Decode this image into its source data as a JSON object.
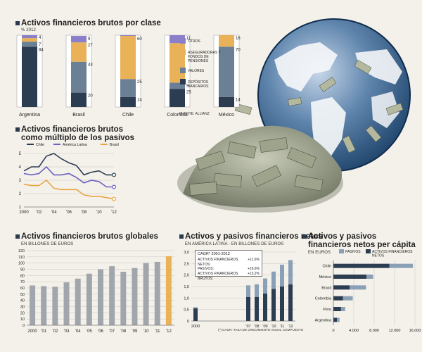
{
  "colors": {
    "dark": "#2c3d52",
    "steel": "#6b7f95",
    "orange": "#e9b158",
    "violet": "#8c7fc9",
    "grid": "#c9c6bf",
    "grey_bar": "#a1a6ad",
    "light_blue": "#8aa0b6"
  },
  "globe_icon": "money-globe-icon",
  "chart_data": [
    {
      "id": "by_class",
      "type": "bar",
      "stacked": true,
      "title": "Activos financieros brutos por clase",
      "subtitle": "% 2012",
      "source": "FUENTE: ALLIANZ",
      "categories": [
        "Argentina",
        "Brasil",
        "Chile",
        "Colombia",
        "México",
        "Perú"
      ],
      "series": [
        {
          "name": "DEPÓSITOS BANCARIOS",
          "color": "#2c3d52",
          "values": [
            84,
            20,
            14,
            25,
            14,
            53
          ]
        },
        {
          "name": "VALORES",
          "color": "#6b7f95",
          "values": [
            7,
            43,
            25,
            9,
            70,
            7
          ]
        },
        {
          "name": "ASEGURADORAS Y FONDOS DE PENSIONES",
          "color": "#e9b158",
          "values": [
            5,
            27,
            60,
            55,
            16,
            35
          ]
        },
        {
          "name": "OTROS",
          "color": "#8c7fc9",
          "values": [
            4,
            9,
            1,
            11,
            0,
            5
          ]
        }
      ],
      "value_labels": [
        [
          "84",
          "7",
          "",
          "4"
        ],
        [
          "20",
          "43",
          "27",
          "9"
        ],
        [
          "14",
          "25",
          "60",
          ""
        ],
        [
          "25",
          "9",
          "",
          "11"
        ],
        [
          "14",
          "70",
          "16",
          ""
        ],
        [
          "53",
          "7",
          "35",
          ""
        ]
      ],
      "legend": [
        {
          "name": "OTROS",
          "color": "#8c7fc9"
        },
        {
          "name": "ASEGURADORAS Y FONDOS DE PENSIONES",
          "color": "#e9b158"
        },
        {
          "name": "VALORES",
          "color": "#6b7f95"
        },
        {
          "name": "DEPÓSITOS BANCARIOS",
          "color": "#2c3d52"
        }
      ],
      "ylim": [
        0,
        100
      ]
    },
    {
      "id": "multiple",
      "type": "line",
      "title": "Activos financieros brutos como múltiplo de los pasivos",
      "x": [
        2000,
        2001,
        2002,
        2003,
        2004,
        2005,
        2006,
        2007,
        2008,
        2009,
        2010,
        2011,
        2012
      ],
      "xtick_labels": [
        "2000",
        "'02",
        "'04",
        "'06",
        "'08",
        "'10",
        "'12"
      ],
      "xtick_values": [
        2000,
        2002,
        2004,
        2006,
        2008,
        2010,
        2012
      ],
      "ylim": [
        1,
        5
      ],
      "yticks": [
        1,
        2,
        3,
        4,
        5
      ],
      "series": [
        {
          "name": "Chile",
          "color": "#2c3d52",
          "values": [
            3.7,
            4.0,
            4.0,
            4.8,
            5.0,
            4.6,
            4.3,
            4.1,
            3.4,
            3.6,
            3.7,
            3.4,
            3.4
          ]
        },
        {
          "name": "América Latina",
          "color": "#6a5fc2",
          "values": [
            3.5,
            3.4,
            3.5,
            4.0,
            3.4,
            3.4,
            3.5,
            3.2,
            2.8,
            3.0,
            2.9,
            2.5,
            2.5
          ]
        },
        {
          "name": "Brasil",
          "color": "#e9a542",
          "values": [
            2.7,
            2.6,
            2.6,
            3.0,
            2.4,
            2.3,
            2.3,
            2.3,
            1.9,
            1.8,
            1.8,
            1.7,
            1.6
          ]
        }
      ]
    },
    {
      "id": "global",
      "type": "bar",
      "title": "Activos financieros brutos globales",
      "subtitle": "EN BILLONES DE EUROS",
      "categories": [
        "2000",
        "'01",
        "'02",
        "'03",
        "'04",
        "'05",
        "'06",
        "'07",
        "'08",
        "'09",
        "'10",
        "'11",
        "'12"
      ],
      "values": [
        64,
        63,
        62,
        69,
        75,
        83,
        90,
        95,
        86,
        92,
        100,
        102,
        111
      ],
      "highlight_index": 12,
      "ylim": [
        0,
        120
      ],
      "yticks": [
        0,
        10,
        20,
        30,
        40,
        50,
        60,
        70,
        80,
        90,
        100,
        110,
        120
      ]
    },
    {
      "id": "netos",
      "type": "bar",
      "stacked": true,
      "title": "Activos y pasivos financieros netos",
      "subtitle": "EN AMÉRICA LATINA - EN BILLONES DE EUROS",
      "categories": [
        "2000",
        "'07",
        "'08",
        "'09",
        "'10",
        "'11",
        "'12"
      ],
      "series": [
        {
          "name": "ACTIVOS NETOS",
          "color": "#2c3d52",
          "values": [
            0.55,
            1.05,
            1.05,
            1.2,
            1.4,
            1.5,
            1.6
          ]
        },
        {
          "name": "PASIVOS",
          "color": "#8aa0b6",
          "values": [
            0.05,
            0.5,
            0.55,
            0.65,
            0.75,
            0.95,
            1.05
          ]
        }
      ],
      "ylim": [
        0,
        3.0
      ],
      "yticks": [
        "0",
        "0,5",
        "1,0",
        "1,5",
        "2,0",
        "2,5",
        "3,0"
      ],
      "cagr_box": {
        "title": "CAGR* 2001-2012",
        "rows": [
          {
            "label": "ACTIVOS FINANCIEROS NETOS:",
            "value": "+11,6%"
          },
          {
            "label": "PASIVOS:",
            "value": "+16,6%"
          },
          {
            "label": "ACTIVOS FINANCIEROS BRUTOS:",
            "value": "+13,2%"
          }
        ]
      },
      "footnote": "(*) CAGR: TASA DE CRECIMIENTO ANUAL COMPUESTO"
    },
    {
      "id": "per_capita",
      "type": "bar",
      "orientation": "horizontal",
      "stacked": true,
      "title": "Activos y pasivos financieros netos per cápita",
      "subtitle": "EN EUROS",
      "categories": [
        "Chile",
        "México",
        "Brasil",
        "Colombia",
        "Perú",
        "Argentina"
      ],
      "series": [
        {
          "name": "ACTIVOS FINANCIEROS NETOS",
          "color": "#2c3d52",
          "values": [
            11000,
            6500,
            3200,
            1900,
            1500,
            700
          ]
        },
        {
          "name": "PASIVOS",
          "color": "#8aa0b6",
          "values": [
            4600,
            1300,
            3200,
            1900,
            800,
            500
          ]
        }
      ],
      "xlim": [
        0,
        16000
      ],
      "xticks": [
        "0",
        "4.000",
        "8.000",
        "12.000",
        "16.000"
      ],
      "legend": [
        {
          "name": "PASIVOS",
          "color": "#8aa0b6"
        },
        {
          "name": "ACTIVOS FINANCIEROS NETOS",
          "color": "#2c3d52"
        }
      ]
    }
  ]
}
